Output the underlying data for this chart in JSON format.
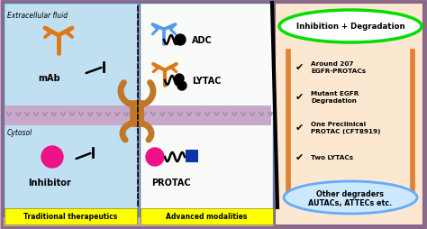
{
  "bg_outer": "#c8a8c0",
  "bg_left": "#c0dff0",
  "bg_middle_color": "#f0f8f0",
  "bg_right": "#fce8d0",
  "yellow_label_bg": "#ffff00",
  "green_ellipse_color": "#00dd00",
  "blue_ellipse_color": "#66aaff",
  "left_label": "Traditional therapeutics",
  "middle_label": "Advanced modalities",
  "extracellular_text": "Extracellular fluid",
  "cytosol_text": "Cytosol",
  "mab_text": "mAb",
  "inhibitor_text": "Inhibitor",
  "adc_text": "ADC",
  "lytac_text": "LYTAC",
  "protac_text": "PROTAC",
  "inhibition_text": "Inhibition + Degradation",
  "bullet1": "Around 207\nEGFR-PROTACs",
  "bullet2": "Mutant EGFR\nDegradation",
  "bullet3": "One Preclinical\nPROTAC (CFT8919)",
  "bullet4": "Two LYTACs",
  "other_line1": "Other degraders",
  "other_line2": "AUTACs, ATTECs etc.",
  "orange_color": "#e07818",
  "magenta_color": "#ee1188",
  "blue_antibody_color": "#5599ee",
  "dark_blue": "#1133aa",
  "brown_color": "#c07828",
  "membrane_color": "#c8a8c8",
  "membrane_dot_color": "#b090b0",
  "divider_color": "#888888"
}
